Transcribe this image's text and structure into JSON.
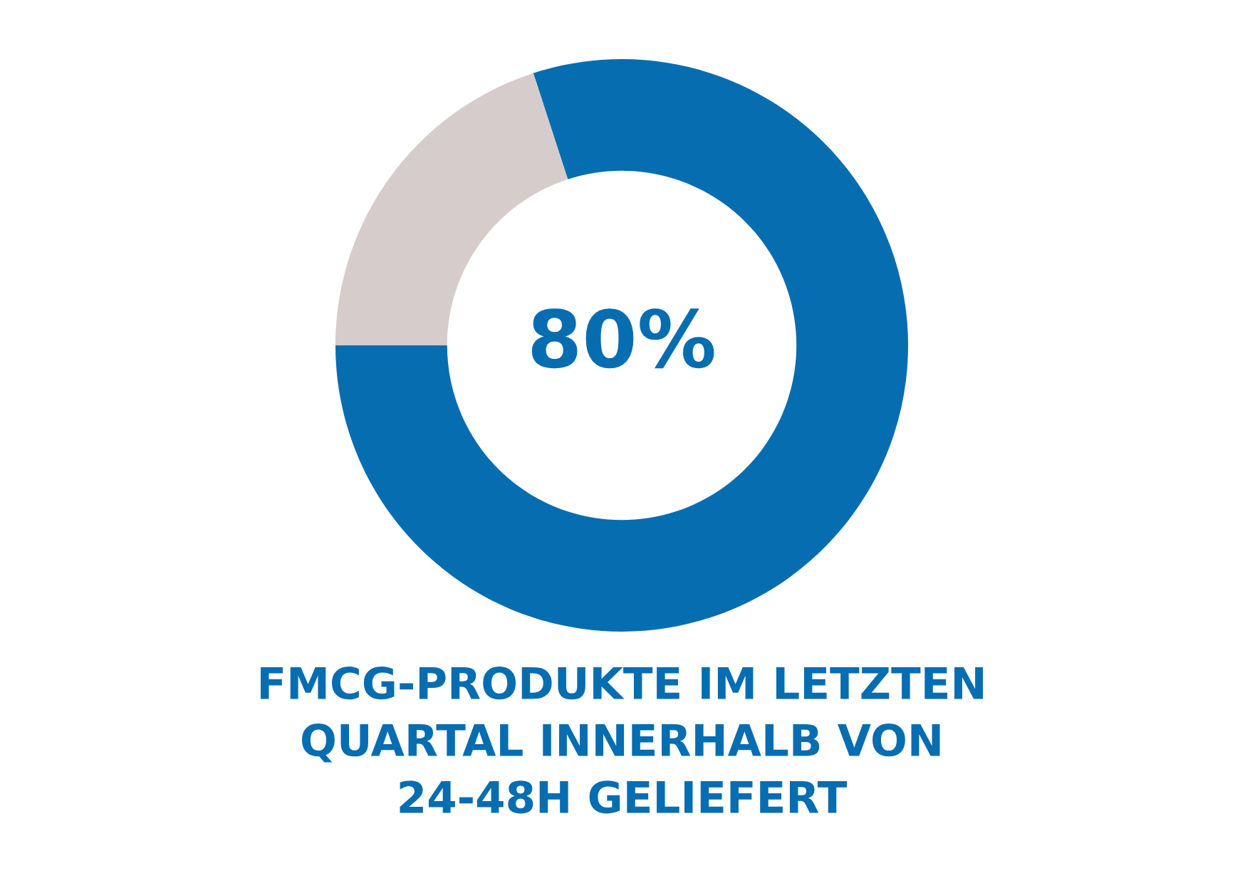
{
  "chart_data": {
    "type": "donut",
    "title": "FMCG-PRODUKTE IM LETZTEN\nQUARTAL INNERHALB VON\n24-48H GELIEFERT",
    "categories": [
      null,
      null
    ],
    "values": [
      80,
      20
    ],
    "colors": [
      "#066db1",
      "#d6cccb"
    ],
    "value_labels": [
      "80%",
      null
    ]
  }
}
